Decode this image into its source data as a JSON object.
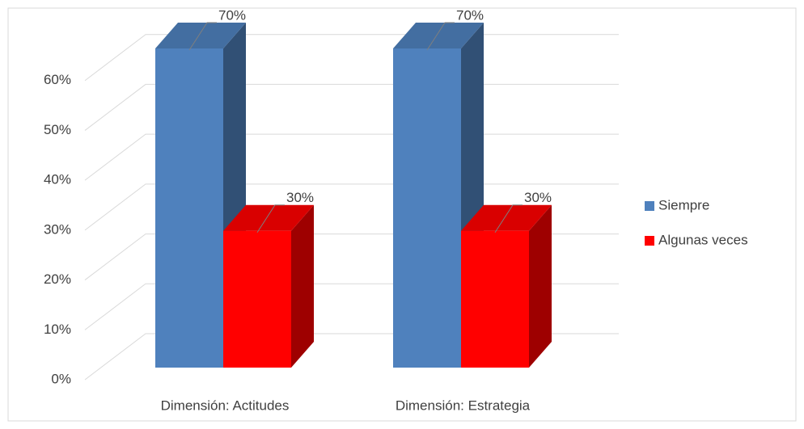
{
  "chart_data": {
    "type": "bar3d",
    "categories": [
      "Dimensión: Actitudes",
      "Dimensión: Estrategia"
    ],
    "series": [
      {
        "name": "Siempre",
        "color": "#4f81bd",
        "values": [
          70,
          70
        ],
        "value_labels": [
          "70%",
          "70%"
        ]
      },
      {
        "name": "Algunas veces",
        "color": "#ff0000",
        "values": [
          30,
          30
        ],
        "value_labels": [
          "30%",
          "30%"
        ]
      }
    ],
    "ylim": [
      0,
      70
    ],
    "yticks": [
      {
        "value": 0,
        "label": "0%"
      },
      {
        "value": 10,
        "label": "10%"
      },
      {
        "value": 20,
        "label": "20%"
      },
      {
        "value": 30,
        "label": "30%"
      },
      {
        "value": 40,
        "label": "40%"
      },
      {
        "value": 50,
        "label": "50%"
      },
      {
        "value": 60,
        "label": "60%"
      }
    ],
    "grid": true,
    "legend": "right"
  }
}
